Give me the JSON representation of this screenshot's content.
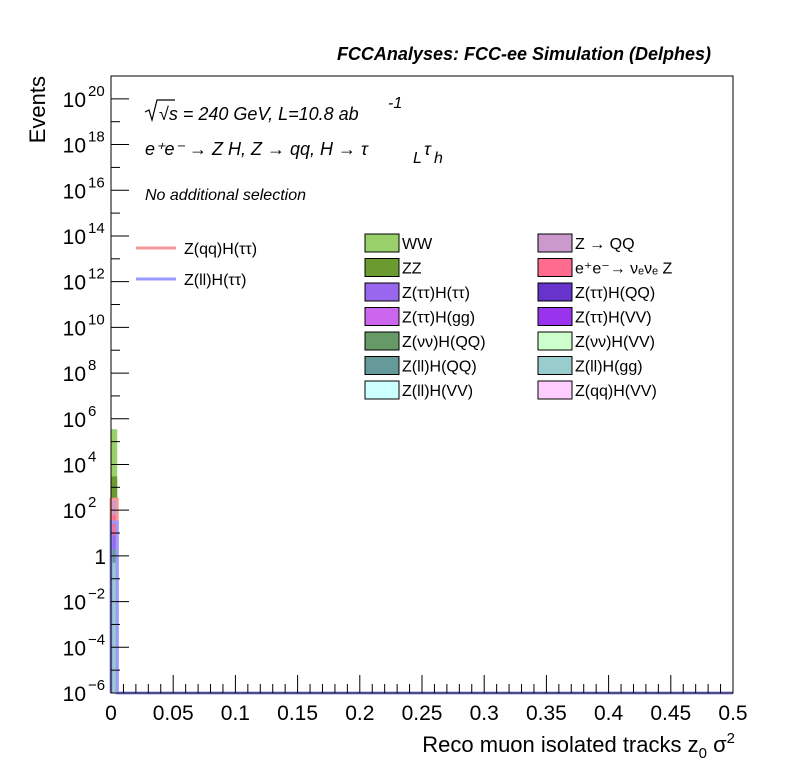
{
  "header": {
    "title": "FCCAnalyses: FCC-ee Simulation (Delphes)"
  },
  "annotations": {
    "line1": "√s = 240 GeV, L=10.8 ab",
    "line1_sup": "-1",
    "line2": "e⁺e⁻ → Z H, Z → qq, H → τ",
    "line2_sub1": "L",
    "line2_tau2": "τ",
    "line2_sub2": "h",
    "line3": "No additional selection"
  },
  "chart_data": {
    "type": "bar",
    "xlabel": "Reco muon isolated tracks z",
    "xlabel_sub": "0",
    "xlabel_tail": " σ",
    "xlabel_sup": "2",
    "ylabel": "Events",
    "xlim": [
      0,
      0.5
    ],
    "ylim": [
      1e-06,
      1e+21
    ],
    "yscale": "log",
    "x_ticks": [
      "0",
      "0.05",
      "0.1",
      "0.15",
      "0.2",
      "0.25",
      "0.3",
      "0.35",
      "0.4",
      "0.45",
      "0.5"
    ],
    "y_ticks": [
      {
        "value": 1e-06,
        "base": "10",
        "exp": "−6"
      },
      {
        "value": 0.0001,
        "base": "10",
        "exp": "−4"
      },
      {
        "value": 0.01,
        "base": "10",
        "exp": "−2"
      },
      {
        "value": 1,
        "base": "1",
        "exp": ""
      },
      {
        "value": 100.0,
        "base": "10",
        "exp": "2"
      },
      {
        "value": 10000.0,
        "base": "10",
        "exp": "4"
      },
      {
        "value": 1000000.0,
        "base": "10",
        "exp": "6"
      },
      {
        "value": 100000000.0,
        "base": "10",
        "exp": "8"
      },
      {
        "value": 10000000000.0,
        "base": "10",
        "exp": "10"
      },
      {
        "value": 1000000000000.0,
        "base": "10",
        "exp": "12"
      },
      {
        "value": 100000000000000.0,
        "base": "10",
        "exp": "14"
      },
      {
        "value": 1e+16,
        "base": "10",
        "exp": "16"
      },
      {
        "value": 1e+18,
        "base": "10",
        "exp": "18"
      },
      {
        "value": 1e+20,
        "base": "10",
        "exp": "20"
      }
    ],
    "bin_width": 0.005,
    "stacked_first_bin": [
      {
        "name": "WW",
        "color": "#99d069",
        "top": 350000.0
      },
      {
        "name": "ZZ",
        "color": "#6a9a30",
        "top": 3000.0
      },
      {
        "name": "Z → QQ",
        "color": "#cc99cc",
        "top": 300
      },
      {
        "name": "e⁺e⁻→ νₑνₑ Z",
        "color": "#ff6b8e",
        "top": 60
      },
      {
        "name": "Z(ττ)H(ττ)",
        "color": "#9966ee",
        "top": 8
      },
      {
        "name": "Z(ll)H(QQ)",
        "color": "#639a9a",
        "top": 2
      },
      {
        "name": "Z(ll)H(gg)",
        "color": "#99cccc",
        "top": 0.5
      }
    ],
    "signals": [
      {
        "name": "Z(qq)H(ττ)",
        "color": "#f59a9a",
        "first_bin": 300
      },
      {
        "name": "Z(ll)H(ττ)",
        "color": "#9999ff",
        "first_bin": 30
      }
    ],
    "legend_signals": [
      "Z(qq)H(ττ)",
      "Z(ll)H(ττ)"
    ],
    "legend_backgrounds": [
      {
        "name": "WW",
        "color": "#99d069"
      },
      {
        "name": "Z → QQ",
        "color": "#cc99cc"
      },
      {
        "name": "ZZ",
        "color": "#6a9a30"
      },
      {
        "name": "e⁺e⁻→ νₑνₑ Z",
        "color": "#ff6b8e"
      },
      {
        "name": "Z(ττ)H(ττ)",
        "color": "#9966ee"
      },
      {
        "name": "Z(ττ)H(QQ)",
        "color": "#6633cc"
      },
      {
        "name": "Z(ττ)H(gg)",
        "color": "#cc66ee"
      },
      {
        "name": "Z(ττ)H(VV)",
        "color": "#9933ee"
      },
      {
        "name": "Z(νν)H(QQ)",
        "color": "#669966"
      },
      {
        "name": "Z(νν)H(VV)",
        "color": "#ccffcc"
      },
      {
        "name": "Z(ll)H(QQ)",
        "color": "#669999"
      },
      {
        "name": "Z(ll)H(gg)",
        "color": "#99cccc"
      },
      {
        "name": "Z(ll)H(VV)",
        "color": "#ccffff"
      },
      {
        "name": "Z(qq)H(VV)",
        "color": "#ffccff"
      }
    ]
  }
}
